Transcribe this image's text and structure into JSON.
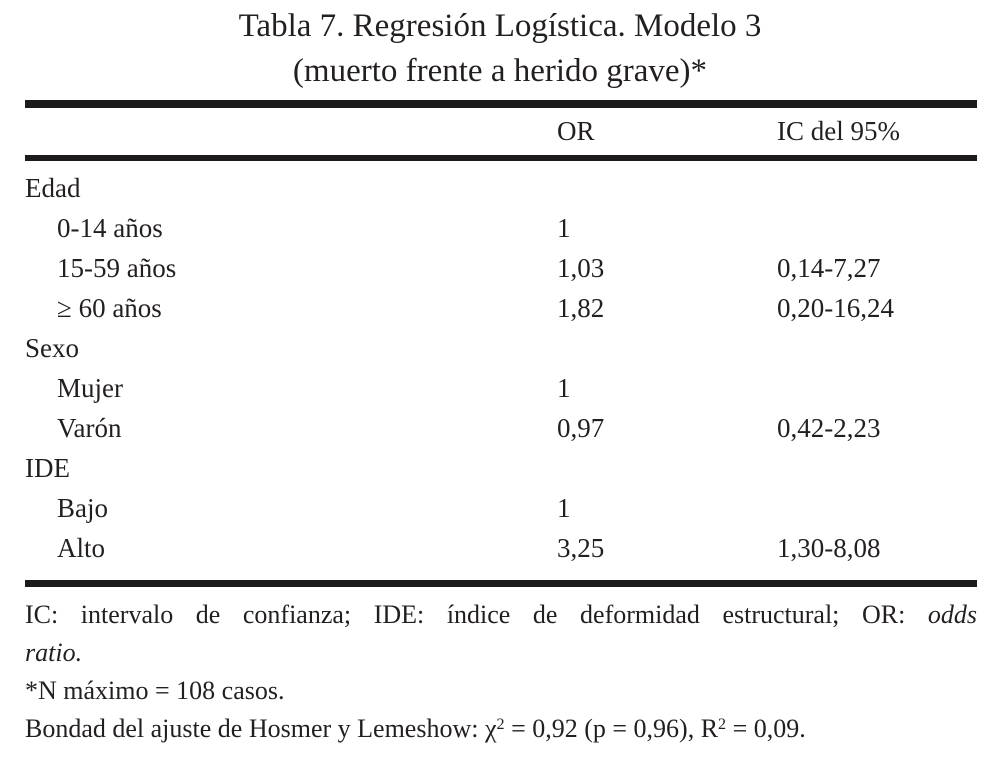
{
  "title": {
    "line1": "Tabla 7. Regresión Logística. Modelo 3",
    "line2": "(muerto frente a herido grave)*"
  },
  "table": {
    "headers": {
      "or": "OR",
      "ic": "IC del 95%"
    },
    "rows": [
      {
        "label": "Edad",
        "or": "",
        "ic": ""
      },
      {
        "label": "0-14 años",
        "or": "1",
        "ic": ""
      },
      {
        "label": "15-59 años",
        "or": "1,03",
        "ic": "0,14-7,27"
      },
      {
        "label": "≥ 60 años",
        "or": "1,82",
        "ic": "0,20-16,24"
      },
      {
        "label": "Sexo",
        "or": "",
        "ic": ""
      },
      {
        "label": "Mujer",
        "or": "1",
        "ic": ""
      },
      {
        "label": "Varón",
        "or": "0,97",
        "ic": "0,42-2,23"
      },
      {
        "label": "IDE",
        "or": "",
        "ic": ""
      },
      {
        "label": "Bajo",
        "or": "1",
        "ic": ""
      },
      {
        "label": "Alto",
        "or": "3,25",
        "ic": "1,30-8,08"
      }
    ]
  },
  "footnotes": {
    "abbrev_plain": "IC: intervalo de confianza; IDE: índice de deformidad estructural; OR:",
    "abbrev_italic_line1": "odds",
    "abbrev_italic_line2": "ratio.",
    "n_note": "*N máximo = 108 casos.",
    "fit": {
      "p1": "Bondad del ajuste de Hosmer y Lemeshow: χ",
      "sup1": "2",
      "p2": " = 0,92 (p = 0,96), R",
      "sup2": "2",
      "p3": " = 0,09."
    }
  },
  "colors": {
    "text": "#231f20",
    "rule": "#1c1a1b",
    "background": "#ffffff"
  }
}
